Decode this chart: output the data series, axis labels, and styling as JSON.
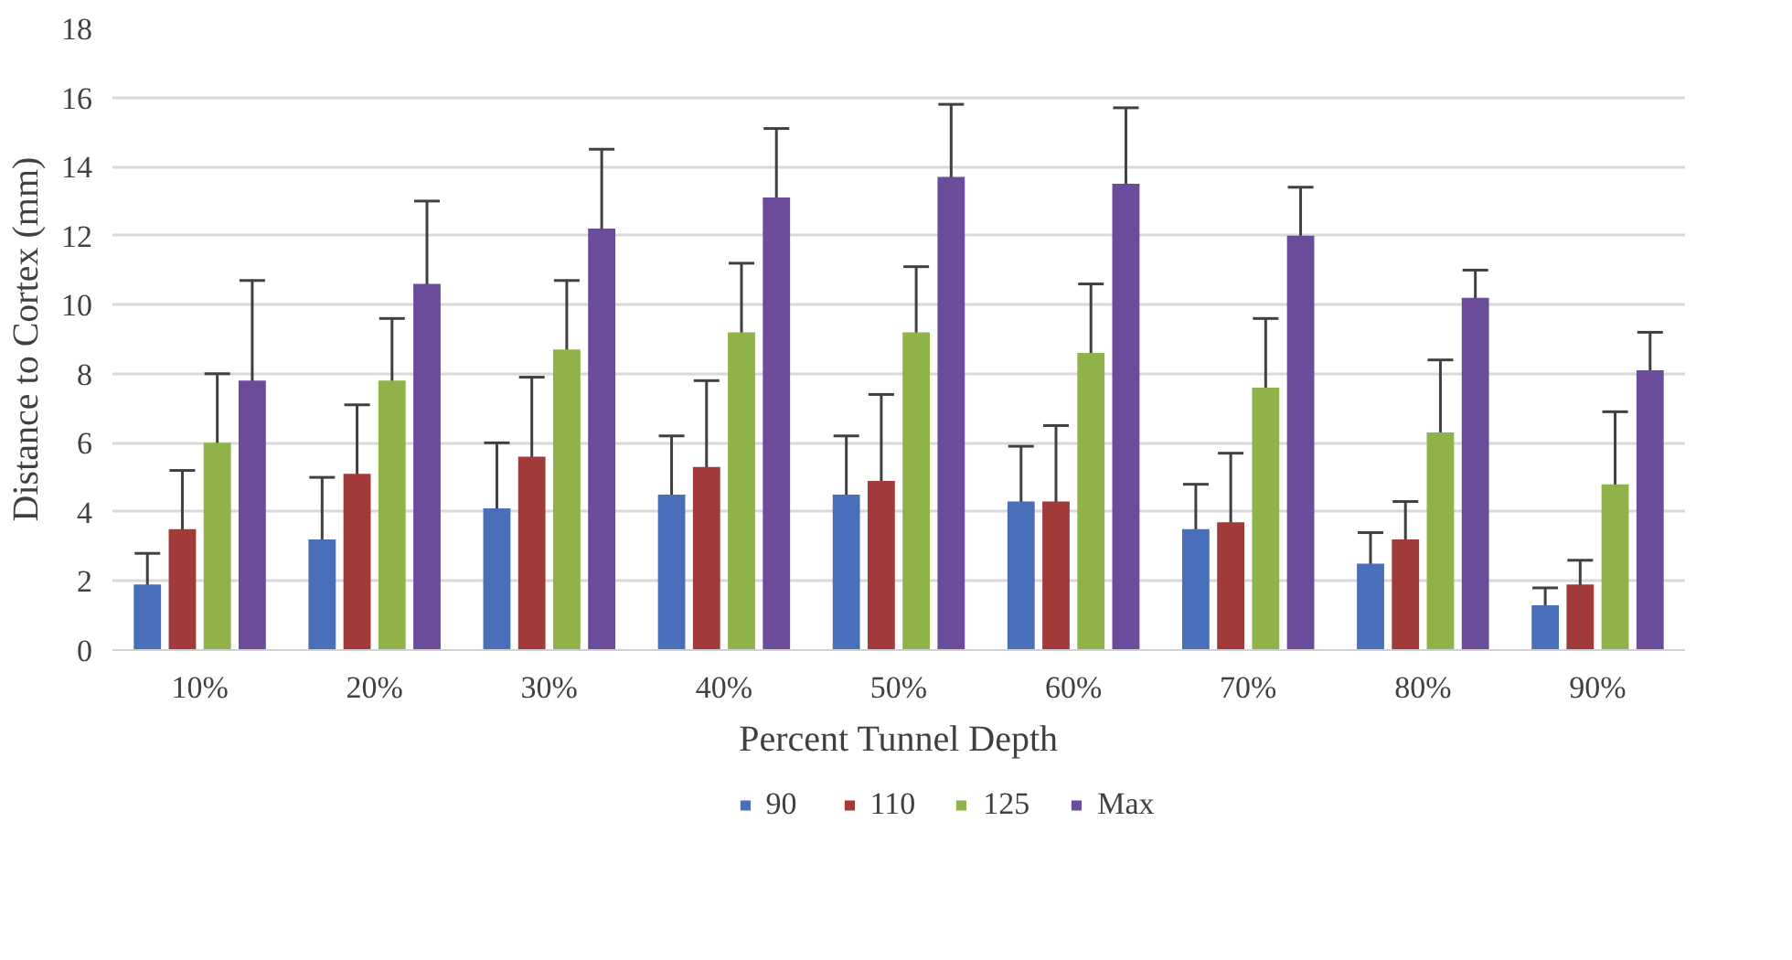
{
  "chart_data": {
    "type": "bar",
    "xlabel": "Percent Tunnel Depth",
    "ylabel": "Distance to Cortex (mm)",
    "categories": [
      "10%",
      "20%",
      "30%",
      "40%",
      "50%",
      "60%",
      "70%",
      "80%",
      "90%"
    ],
    "series": [
      {
        "name": "90",
        "color": "#4a6fba",
        "values": [
          1.9,
          3.2,
          4.1,
          4.5,
          4.5,
          4.3,
          3.5,
          2.5,
          1.3
        ],
        "errors": [
          0.9,
          1.8,
          1.9,
          1.7,
          1.7,
          1.6,
          1.3,
          0.9,
          0.5
        ]
      },
      {
        "name": "110",
        "color": "#a33a3a",
        "values": [
          3.5,
          5.1,
          5.6,
          5.3,
          4.9,
          4.3,
          3.7,
          3.2,
          1.9
        ],
        "errors": [
          1.7,
          2.0,
          2.3,
          2.5,
          2.5,
          2.2,
          2.0,
          1.1,
          0.7
        ]
      },
      {
        "name": "125",
        "color": "#8fb249",
        "values": [
          6.0,
          7.8,
          8.7,
          9.2,
          9.2,
          8.6,
          7.6,
          6.3,
          4.8
        ],
        "errors": [
          2.0,
          1.8,
          2.0,
          2.0,
          1.9,
          2.0,
          2.0,
          2.1,
          2.1
        ]
      },
      {
        "name": "Max",
        "color": "#6b4c9a",
        "values": [
          7.8,
          10.6,
          12.2,
          13.1,
          13.7,
          13.5,
          12.0,
          10.2,
          8.1
        ],
        "errors": [
          2.9,
          2.4,
          2.3,
          2.0,
          2.1,
          2.2,
          1.4,
          0.8,
          1.1
        ]
      }
    ],
    "ylim": [
      0,
      18
    ],
    "yticks": [
      0,
      2,
      4,
      6,
      8,
      10,
      12,
      14,
      16,
      18
    ],
    "grid": "y",
    "legend": "bottom"
  }
}
